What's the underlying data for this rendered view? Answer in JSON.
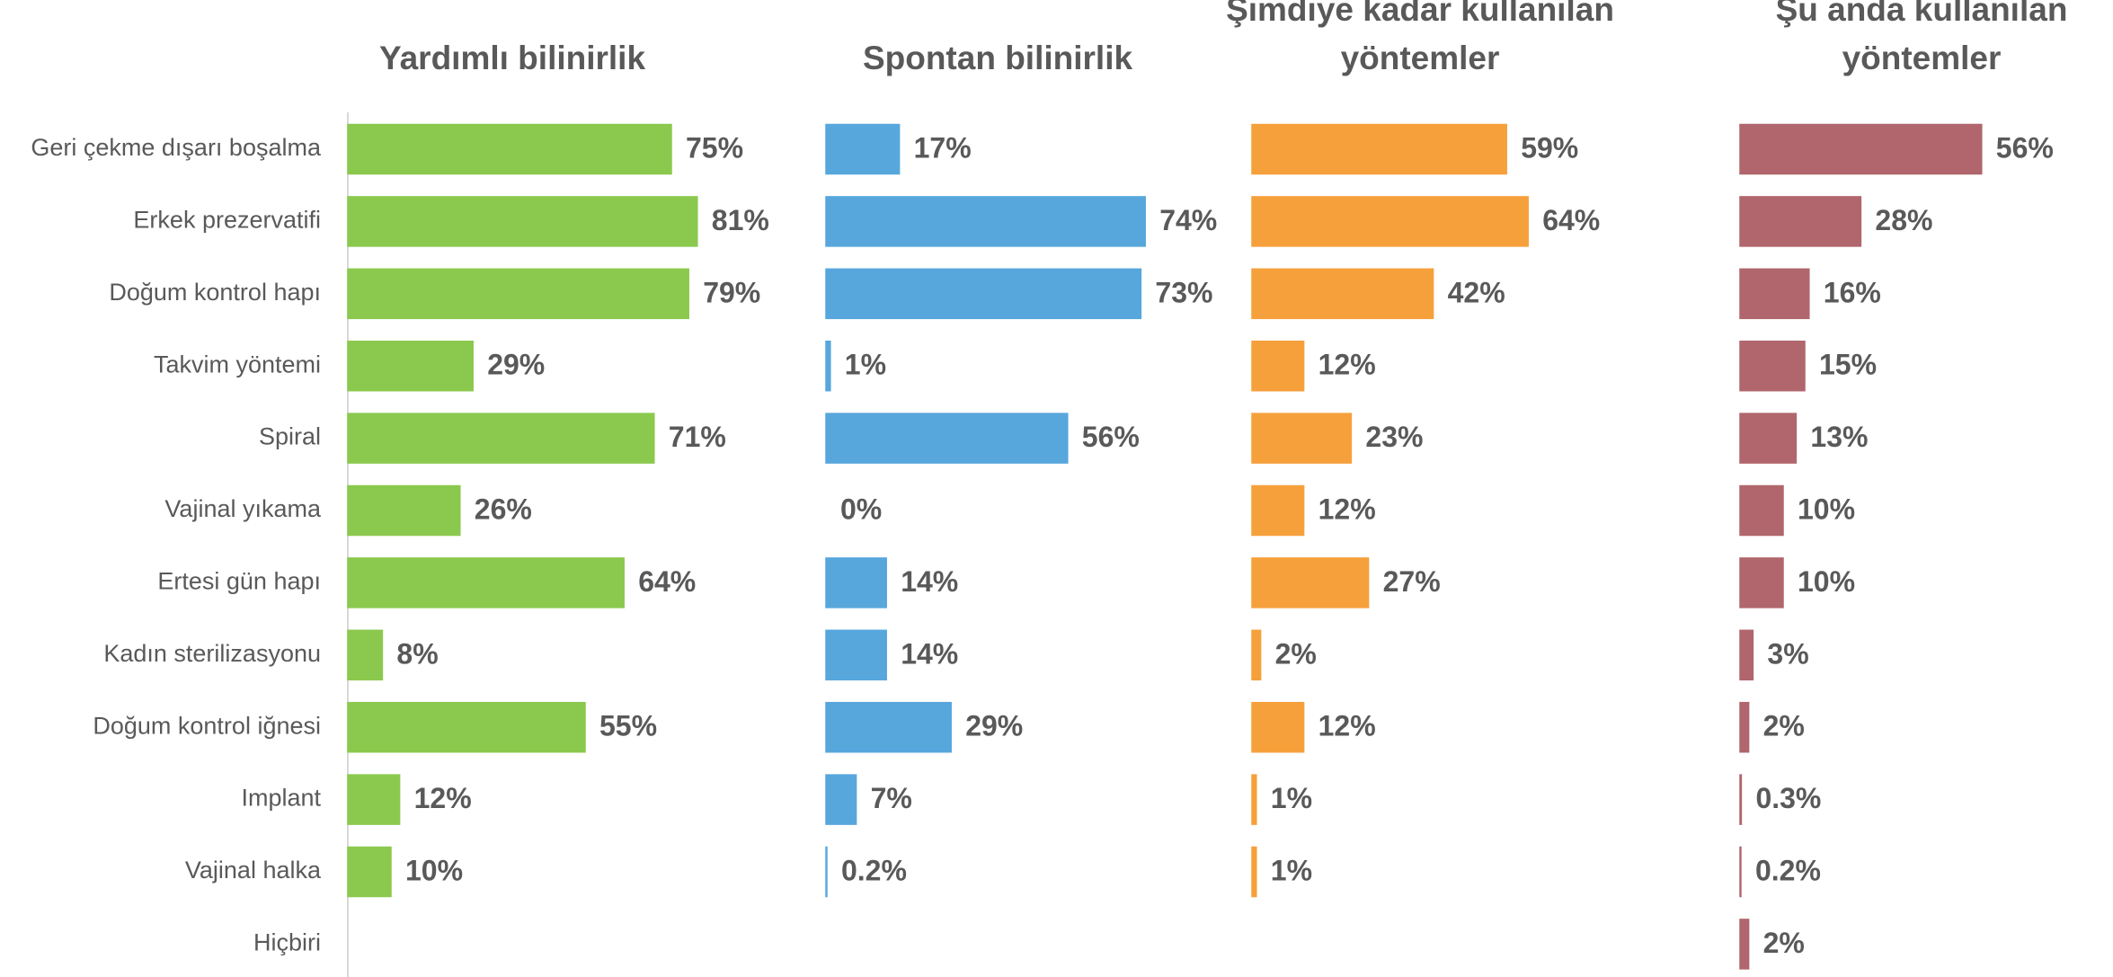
{
  "chart_data": {
    "type": "bar",
    "categories": [
      "Geri çekme dışarı boşalma",
      "Erkek prezervatifi",
      "Doğum kontrol hapı",
      "Takvim yöntemi",
      "Spiral",
      "Vajinal yıkama",
      "Ertesi gün hapı",
      "Kadın sterilizasyonu",
      "Doğum kontrol iğnesi",
      "Implant",
      "Vajinal halka",
      "Hiçbiri"
    ],
    "series": [
      {
        "name": "Yardımlı bilinirlik",
        "color": "#8bc94e",
        "values": [
          75,
          81,
          79,
          29,
          71,
          26,
          64,
          8,
          55,
          12,
          10,
          null
        ],
        "value_labels": [
          "75%",
          "81%",
          "79%",
          "29%",
          "71%",
          "26%",
          "64%",
          "8%",
          "55%",
          "12%",
          "10%",
          null
        ]
      },
      {
        "name": "Spontan bilinirlik",
        "color": "#57a7dd",
        "values": [
          17,
          74,
          73,
          1,
          56,
          0,
          14,
          14,
          29,
          7,
          0.2,
          null
        ],
        "value_labels": [
          "17%",
          "74%",
          "73%",
          "1%",
          "56%",
          "0%",
          "14%",
          "14%",
          "29%",
          "7%",
          "0.2%",
          null
        ]
      },
      {
        "name": "Şimdiye kadar kullanılan yöntemler",
        "color": "#f6a03c",
        "values": [
          59,
          64,
          42,
          12,
          23,
          12,
          27,
          2,
          12,
          1,
          1,
          null
        ],
        "value_labels": [
          "59%",
          "64%",
          "42%",
          "12%",
          "23%",
          "12%",
          "27%",
          "2%",
          "12%",
          "1%",
          "1%",
          null
        ]
      },
      {
        "name": "Şu anda kullanılan yöntemler",
        "color": "#b0666c",
        "values": [
          56,
          28,
          16,
          15,
          13,
          10,
          10,
          3,
          2,
          0.3,
          0.2,
          2
        ],
        "value_labels": [
          "56%",
          "28%",
          "16%",
          "15%",
          "13%",
          "10%",
          "10%",
          "3%",
          "2%",
          "0.3%",
          "0.2%",
          "2%"
        ]
      }
    ]
  }
}
